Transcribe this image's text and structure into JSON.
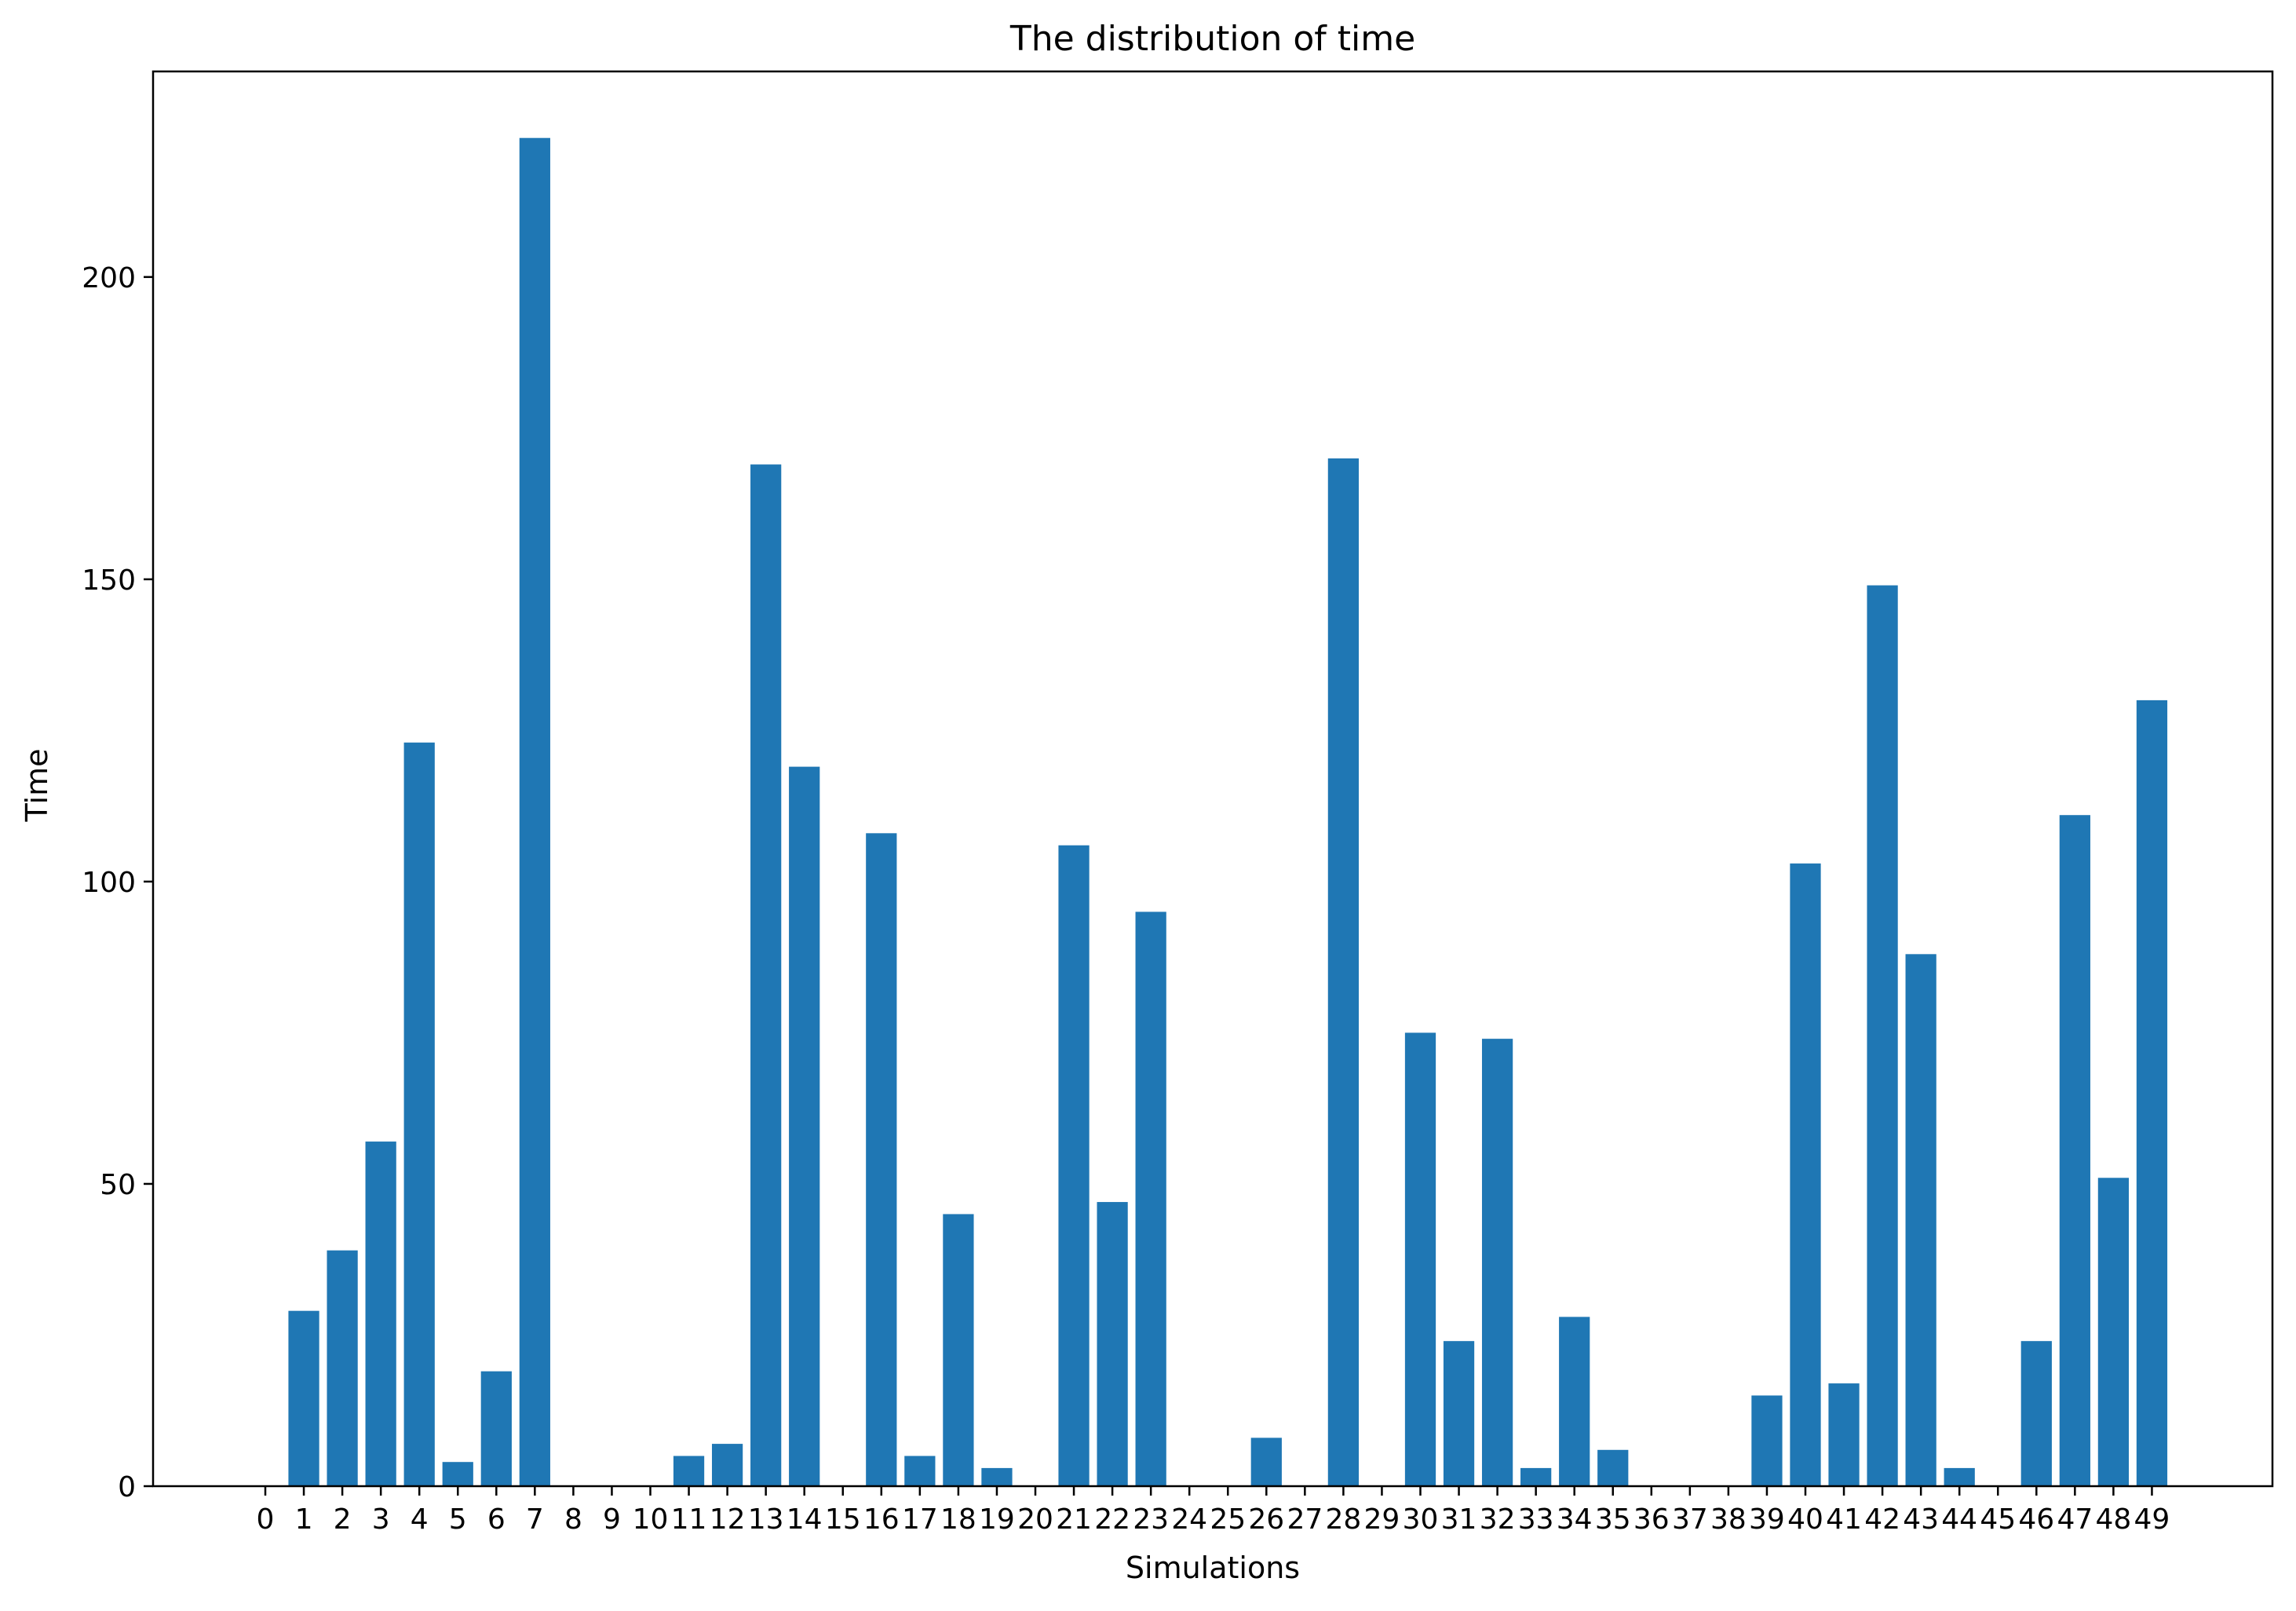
{
  "chart_data": {
    "type": "bar",
    "title": "The distribution of time",
    "xlabel": "Simulations",
    "ylabel": "Time",
    "categories": [
      "0",
      "1",
      "2",
      "3",
      "4",
      "5",
      "6",
      "7",
      "8",
      "9",
      "10",
      "11",
      "12",
      "13",
      "14",
      "15",
      "16",
      "17",
      "18",
      "19",
      "20",
      "21",
      "22",
      "23",
      "24",
      "25",
      "26",
      "27",
      "28",
      "29",
      "30",
      "31",
      "32",
      "33",
      "34",
      "35",
      "36",
      "37",
      "38",
      "39",
      "40",
      "41",
      "42",
      "43",
      "44",
      "45",
      "46",
      "47",
      "48",
      "49"
    ],
    "values": [
      0,
      29,
      39,
      57,
      123,
      4,
      19,
      223,
      0,
      0,
      0,
      5,
      7,
      169,
      119,
      0,
      108,
      5,
      45,
      3,
      0,
      106,
      47,
      95,
      0,
      0,
      8,
      0,
      170,
      0,
      75,
      24,
      74,
      3,
      28,
      6,
      0,
      0,
      0,
      15,
      103,
      17,
      149,
      88,
      3,
      0,
      24,
      111,
      51,
      130
    ],
    "ylim": [
      0,
      234
    ],
    "yticks": [
      0,
      50,
      100,
      150,
      200
    ],
    "grid": false,
    "colors": {
      "bar": "#1f77b4",
      "axis": "#000000",
      "background": "#ffffff"
    }
  }
}
